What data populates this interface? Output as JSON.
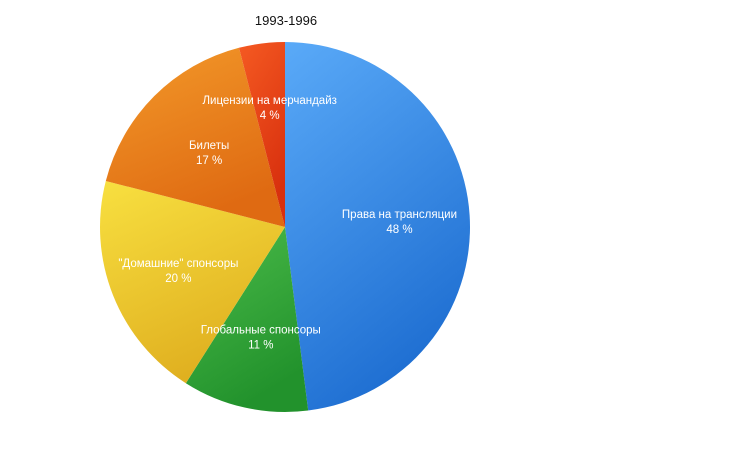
{
  "chart_data": {
    "type": "pie",
    "title": "1993-1996",
    "slices": [
      {
        "label": "Права на трансляции",
        "value": 48,
        "value_label": "48 %",
        "color_light": "#5aaaf8",
        "color_dark": "#1f6fd2"
      },
      {
        "label": "Глобальные спонсоры",
        "value": 11,
        "value_label": "11 %",
        "color_light": "#4cbc4a",
        "color_dark": "#22922c"
      },
      {
        "label": "\"Домашние\" спонсоры",
        "value": 20,
        "value_label": "20 %",
        "color_light": "#f8e040",
        "color_dark": "#e0b020"
      },
      {
        "label": "Билеты",
        "value": 17,
        "value_label": "17 %",
        "color_light": "#f39a2a",
        "color_dark": "#df6a12"
      },
      {
        "label": "Лицензии на мерчандайз",
        "value": 4,
        "value_label": "4 %",
        "color_light": "#f55a22",
        "color_dark": "#d8300e"
      }
    ]
  }
}
